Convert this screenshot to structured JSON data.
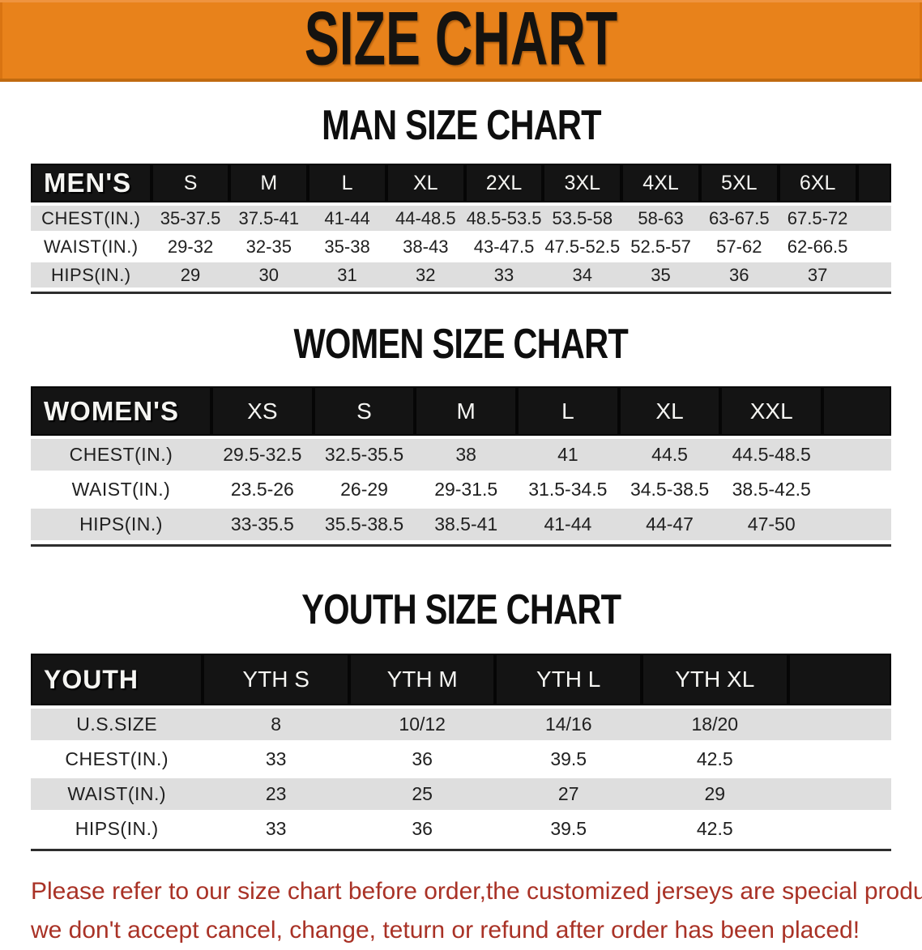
{
  "banner": {
    "title": "SIZE CHART",
    "bg_color": "#e8821b",
    "text_color": "#151310"
  },
  "sections": [
    {
      "title": "MAN SIZE CHART",
      "table": {
        "corner_label": "MEN'S",
        "columns": [
          "S",
          "M",
          "L",
          "XL",
          "2XL",
          "3XL",
          "4XL",
          "5XL",
          "6XL"
        ],
        "rows": [
          {
            "label": "CHEST(IN.)",
            "values": [
              "35-37.5",
              "37.5-41",
              "41-44",
              "44-48.5",
              "48.5-53.5",
              "53.5-58",
              "58-63",
              "63-67.5",
              "67.5-72"
            ]
          },
          {
            "label": "WAIST(IN.)",
            "values": [
              "29-32",
              "32-35",
              "35-38",
              "38-43",
              "43-47.5",
              "47.5-52.5",
              "52.5-57",
              "57-62",
              "62-66.5"
            ]
          },
          {
            "label": "HIPS(IN.)",
            "values": [
              "29",
              "30",
              "31",
              "32",
              "33",
              "34",
              "35",
              "36",
              "37"
            ]
          }
        ]
      }
    },
    {
      "title": "WOMEN SIZE CHART",
      "table": {
        "corner_label": "WOMEN'S",
        "columns": [
          "XS",
          "S",
          "M",
          "L",
          "XL",
          "XXL"
        ],
        "rows": [
          {
            "label": "CHEST(IN.)",
            "values": [
              "29.5-32.5",
              "32.5-35.5",
              "38",
              "41",
              "44.5",
              "44.5-48.5"
            ]
          },
          {
            "label": "WAIST(IN.)",
            "values": [
              "23.5-26",
              "26-29",
              "29-31.5",
              "31.5-34.5",
              "34.5-38.5",
              "38.5-42.5"
            ]
          },
          {
            "label": "HIPS(IN.)",
            "values": [
              "33-35.5",
              "35.5-38.5",
              "38.5-41",
              "41-44",
              "44-47",
              "47-50"
            ]
          }
        ]
      }
    },
    {
      "title": "YOUTH SIZE CHART",
      "table": {
        "corner_label": "YOUTH",
        "columns": [
          "YTH S",
          "YTH M",
          "YTH L",
          "YTH XL"
        ],
        "rows": [
          {
            "label": "U.S.SIZE",
            "values": [
              "8",
              "10/12",
              "14/16",
              "18/20"
            ]
          },
          {
            "label": "CHEST(IN.)",
            "values": [
              "33",
              "36",
              "39.5",
              "42.5"
            ]
          },
          {
            "label": "WAIST(IN.)",
            "values": [
              "23",
              "25",
              "27",
              "29"
            ]
          },
          {
            "label": "HIPS(IN.)",
            "values": [
              "33",
              "36",
              "39.5",
              "42.5"
            ]
          }
        ]
      }
    }
  ],
  "disclaimer": {
    "line1": "Please refer to our size chart before order,the customized jerseys are special products,",
    "line2": "we don't accept cancel, change, teturn or refund after order has been placed!",
    "color": "#a93226"
  }
}
